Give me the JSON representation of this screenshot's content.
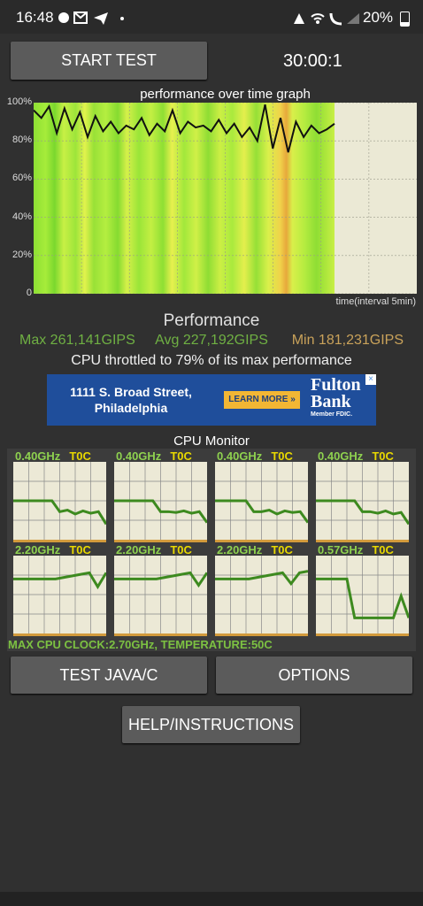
{
  "status_bar": {
    "time": "16:48",
    "battery": "20%"
  },
  "controls": {
    "start_button": "START TEST",
    "timer": "30:00:1"
  },
  "graph": {
    "title": "performance over time graph",
    "y_labels": [
      "100%",
      "80%",
      "60%",
      "40%",
      "20%",
      "0"
    ],
    "x_label": "time(interval 5min)",
    "values": [
      96,
      92,
      98,
      84,
      97,
      86,
      95,
      82,
      93,
      85,
      90,
      84,
      88,
      86,
      92,
      83,
      89,
      85,
      96,
      84,
      90,
      87,
      88,
      85,
      91,
      84,
      89,
      82,
      87,
      80,
      99,
      76,
      92,
      74,
      90,
      82,
      88,
      84,
      86,
      89
    ]
  },
  "performance": {
    "heading": "Performance",
    "max": "Max 261,141GIPS",
    "avg": "Avg 227,192GIPS",
    "min": "Min 181,231GIPS",
    "throttled": "CPU throttled to 79% of its max performance"
  },
  "ad": {
    "line1": "1111 S. Broad Street,",
    "line2": "Philadelphia",
    "cta": "LEARN MORE »",
    "brand1": "Fulton",
    "brand2": "Bank",
    "fdic": "Member FDIC."
  },
  "cpu_monitor": {
    "title": "CPU Monitor",
    "cores": [
      {
        "freq": "0.40GHz",
        "temp": "T0C",
        "history": [
          50,
          50,
          50,
          50,
          50,
          50,
          36,
          38,
          33,
          37,
          34,
          36,
          20
        ]
      },
      {
        "freq": "0.40GHz",
        "temp": "T0C",
        "history": [
          50,
          50,
          50,
          50,
          50,
          50,
          36,
          36,
          35,
          37,
          34,
          36,
          22
        ]
      },
      {
        "freq": "0.40GHz",
        "temp": "T0C",
        "history": [
          50,
          50,
          50,
          50,
          50,
          36,
          36,
          38,
          33,
          37,
          35,
          36,
          22
        ]
      },
      {
        "freq": "0.40GHz",
        "temp": "T0C",
        "history": [
          50,
          50,
          50,
          50,
          50,
          50,
          36,
          36,
          34,
          37,
          33,
          35,
          20
        ]
      },
      {
        "freq": "2.20GHz",
        "temp": "T0C",
        "history": [
          70,
          70,
          70,
          70,
          70,
          70,
          72,
          74,
          76,
          78,
          60,
          78
        ]
      },
      {
        "freq": "2.20GHz",
        "temp": "T0C",
        "history": [
          70,
          70,
          70,
          70,
          70,
          70,
          72,
          74,
          76,
          78,
          62,
          78
        ]
      },
      {
        "freq": "2.20GHz",
        "temp": "T0C",
        "history": [
          70,
          70,
          70,
          70,
          70,
          72,
          74,
          76,
          78,
          64,
          78,
          80
        ]
      },
      {
        "freq": "0.57GHz",
        "temp": "T0C",
        "history": [
          70,
          70,
          70,
          70,
          70,
          20,
          20,
          20,
          20,
          20,
          20,
          48,
          20
        ]
      }
    ],
    "footer": "MAX CPU CLOCK:2.70GHz, TEMPERATURE:50C"
  },
  "buttons": {
    "java": "TEST JAVA/C",
    "options": "OPTIONS",
    "help": "HELP/INSTRUCTIONS"
  }
}
